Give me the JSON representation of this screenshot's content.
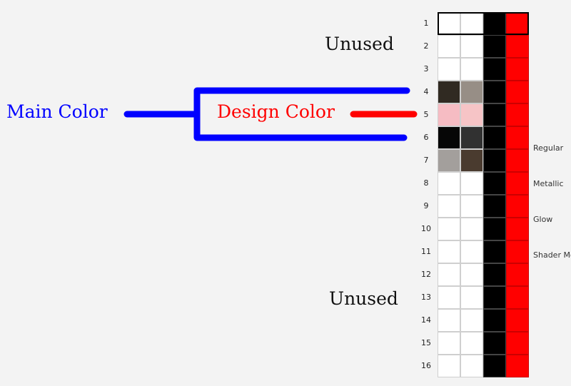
{
  "annotations": {
    "unused_top": "Unused",
    "unused_bottom": "Unused",
    "main_color": "Main Color",
    "design_color": "Design Color"
  },
  "colors": {
    "main_color_text": "#0000ff",
    "design_color_text": "#ff0000",
    "bracket_stroke": "#0000ff",
    "design_arrow_stroke": "#ff0000"
  },
  "mode_labels": [
    "Regular",
    "Metallic",
    "Glow",
    "Shader Mo"
  ],
  "palette_rows": [
    {
      "num": "1",
      "c1": "#ffffff",
      "c2": "#ffffff",
      "selected": true
    },
    {
      "num": "2",
      "c1": "#ffffff",
      "c2": "#ffffff"
    },
    {
      "num": "3",
      "c1": "#ffffff",
      "c2": "#ffffff"
    },
    {
      "num": "4",
      "c1": "#302a22",
      "c2": "#978e86"
    },
    {
      "num": "5",
      "c1": "#f6bcc3",
      "c2": "#f6c4c6"
    },
    {
      "num": "6",
      "c1": "#060606",
      "c2": "#313131"
    },
    {
      "num": "7",
      "c1": "#a39f9c",
      "c2": "#4a3b2f"
    },
    {
      "num": "8",
      "c1": "#ffffff",
      "c2": "#ffffff"
    },
    {
      "num": "9",
      "c1": "#ffffff",
      "c2": "#ffffff"
    },
    {
      "num": "10",
      "c1": "#ffffff",
      "c2": "#ffffff"
    },
    {
      "num": "11",
      "c1": "#ffffff",
      "c2": "#ffffff"
    },
    {
      "num": "12",
      "c1": "#ffffff",
      "c2": "#ffffff"
    },
    {
      "num": "13",
      "c1": "#ffffff",
      "c2": "#ffffff"
    },
    {
      "num": "14",
      "c1": "#ffffff",
      "c2": "#ffffff"
    },
    {
      "num": "15",
      "c1": "#ffffff",
      "c2": "#ffffff"
    },
    {
      "num": "16",
      "c1": "#ffffff",
      "c2": "#ffffff"
    }
  ]
}
